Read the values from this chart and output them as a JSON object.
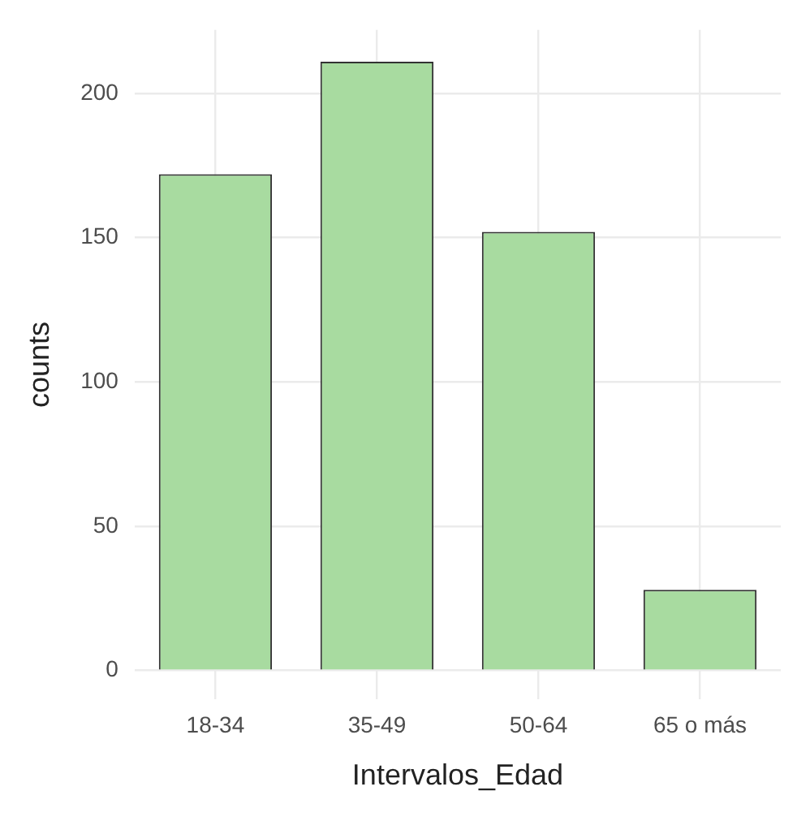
{
  "chart_data": {
    "type": "bar",
    "xlabel": "Intervalos_Edad",
    "ylabel": "counts",
    "categories": [
      "18-34",
      "35-49",
      "50-64",
      "65 o más"
    ],
    "values": [
      172,
      211,
      152,
      28
    ],
    "color": "#a8dba0",
    "ylim": [
      -10,
      222
    ],
    "yticks": [
      0,
      50,
      100,
      150,
      200
    ],
    "grid": true
  }
}
